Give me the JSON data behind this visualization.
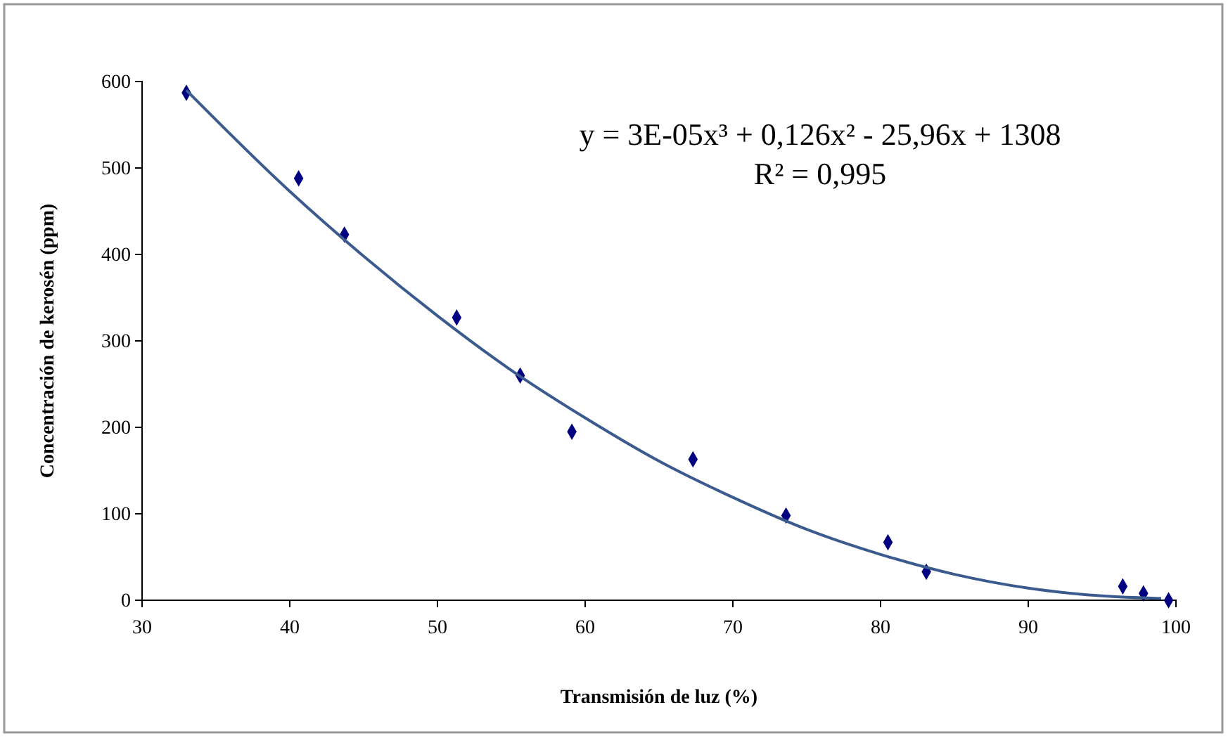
{
  "chart_data": {
    "type": "scatter",
    "xlabel": "Transmisión de luz (%)",
    "ylabel": "Concentración de kerosén (ppm)",
    "xlim": [
      30,
      100
    ],
    "xticks": [
      30,
      40,
      50,
      60,
      70,
      80,
      90,
      100
    ],
    "ylim": [
      0,
      600
    ],
    "yticks": [
      0,
      100,
      200,
      300,
      400,
      500,
      600
    ],
    "grid": false,
    "series": [
      {
        "marker": "diamond",
        "color": "#000080",
        "x": [
          33,
          40.6,
          43.7,
          51.3,
          55.6,
          59.1,
          67.3,
          73.6,
          80.5,
          83.1,
          96.4,
          97.8,
          99.5
        ],
        "values": [
          587,
          488,
          423,
          327,
          260,
          195,
          163,
          98,
          67,
          33,
          16,
          8,
          0
        ]
      },
      {
        "type": "line",
        "color": "#3b5b8e",
        "x": [
          33,
          40,
          45,
          50,
          55,
          60,
          65,
          70,
          75,
          80,
          85,
          90,
          95,
          99
        ],
        "values": [
          590,
          473,
          398,
          329,
          266,
          211,
          161,
          119,
          82,
          53,
          30,
          14,
          5,
          2
        ]
      }
    ],
    "annotations": [
      "y = 3E-05x³ + 0,126x² - 25,96x + 1308",
      "R² = 0,995"
    ]
  }
}
